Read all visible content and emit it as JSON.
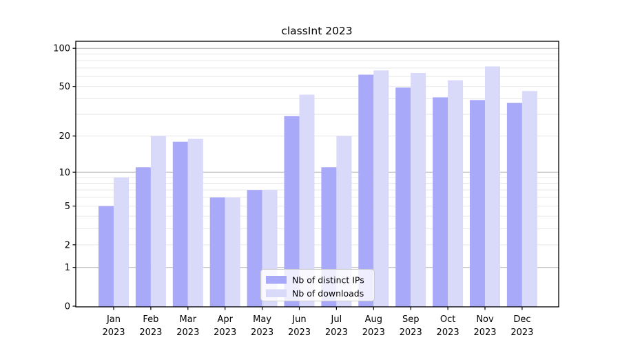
{
  "chart_data": {
    "type": "bar",
    "title": "classInt 2023",
    "year": "2023",
    "months": [
      "Jan",
      "Feb",
      "Mar",
      "Apr",
      "May",
      "Jun",
      "Jul",
      "Aug",
      "Sep",
      "Oct",
      "Nov",
      "Dec"
    ],
    "categories": [
      "Jan 2023",
      "Feb 2023",
      "Mar 2023",
      "Apr 2023",
      "May 2023",
      "Jun 2023",
      "Jul 2023",
      "Aug 2023",
      "Sep 2023",
      "Oct 2023",
      "Nov 2023",
      "Dec 2023"
    ],
    "series": [
      {
        "name": "Nb of distinct IPs",
        "color": "#a9a9f9",
        "values": [
          5,
          11,
          18,
          6,
          7,
          29,
          11,
          62,
          49,
          41,
          39,
          37
        ]
      },
      {
        "name": "Nb of downloads",
        "color": "#d9d9fa",
        "values": [
          9,
          20,
          19,
          6,
          7,
          43,
          20,
          67,
          64,
          56,
          72,
          46
        ]
      }
    ],
    "xlabel": "",
    "ylabel": "",
    "ylim": [
      0,
      100
    ],
    "y_scale": "log1p",
    "y_ticks": [
      0,
      1,
      2,
      5,
      10,
      20,
      50,
      100
    ],
    "gridlines": {
      "major_values": [
        1,
        10,
        100
      ],
      "minor_values": [
        2,
        3,
        4,
        5,
        6,
        7,
        8,
        9,
        20,
        30,
        40,
        50,
        60,
        70,
        80,
        90
      ],
      "major_color": "#b0b0b0",
      "minor_color": "#e8e8e8"
    },
    "legend_position": "bottom-center",
    "colors": {
      "spine": "#000000",
      "legend_border": "#cccccc",
      "legend_background": "rgba(255,255,255,0.8)"
    }
  }
}
